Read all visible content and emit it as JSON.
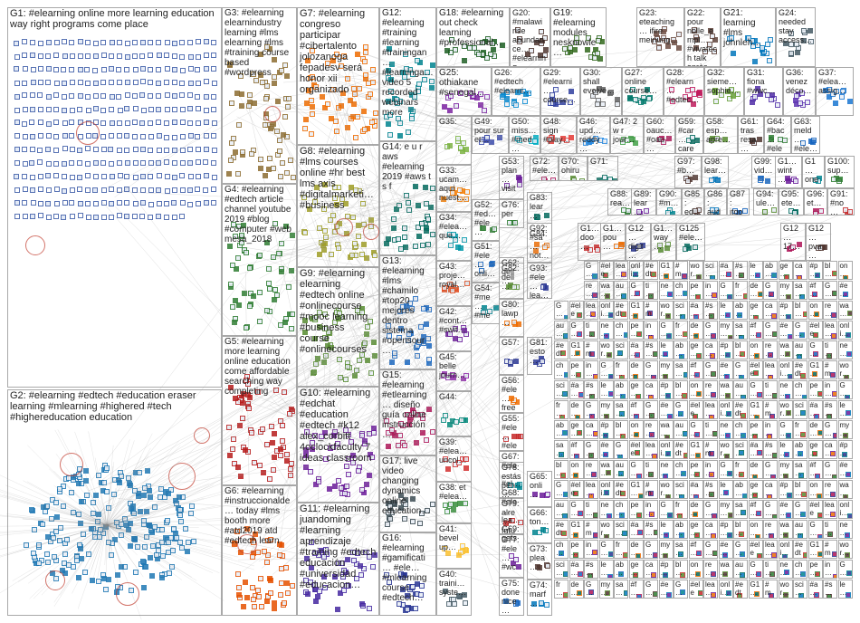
{
  "graph": {
    "groups": [
      {
        "id": "G1",
        "label": "G1: #elearning online more learning education way right programs come place",
        "color": "#1f4e9c"
      },
      {
        "id": "G2",
        "label": "G2: #elearning #edtech #education eraser learning #mlearning #highered #tech #highereducation education",
        "color": "#1f78b4"
      },
      {
        "id": "G3",
        "label": "G3: #elearning elearnindustry learning #lms elearning #lms #training course based #wordpress",
        "color": "#8c6d31"
      },
      {
        "id": "G4",
        "label": "G4: #elearning #edtech article channel youtube 2019 #blog #computer #web mesa_2018",
        "color": "#2e7d32"
      },
      {
        "id": "G5",
        "label": "G5: #elearning more learning online education come affordable searching way completing",
        "color": "#b71c1c"
      },
      {
        "id": "G6",
        "label": "G6: #elearning #instruccionalde… today #lms booth more #atd2019 atd #edtech learn",
        "color": "#e65100"
      },
      {
        "id": "G7",
        "label": "G7: #elearning congreso participar #cibertalento jolozanoga fepadesv será honor xii organizado",
        "color": "#ef6c00"
      },
      {
        "id": "G8",
        "label": "G8: #elearning #lms courses online #hr best lms axis #digitalmarketi… #business",
        "color": "#9e9d24"
      },
      {
        "id": "G9",
        "label": "G9: #elearning elearning #edtech online #onlinecourse #mooc learning #business course #onlinecourses",
        "color": "#558b2f"
      },
      {
        "id": "G10",
        "label": "G10: #elearning #edchat #education #edtech #k12 alex_corbitt 4oclockfaculty 7 ideas classroom",
        "color": "#6a1b9a"
      },
      {
        "id": "G11",
        "label": "G11: #elearning juandoming #learning aprendizaje #training #edtech educación #universidad #educacion…",
        "color": "#4527a0"
      },
      {
        "id": "G12",
        "label": "G12: #elearning #training #learning #trainingan… #learninga… video 5 recorded webinars more",
        "color": "#00838f"
      },
      {
        "id": "G13",
        "label": "G13: #elearning #lms #chamilo #top20 mejores dentro sistema #opensour…",
        "color": "#1565c0"
      },
      {
        "id": "G14",
        "label": "G14: e u r aws #elearning 2019 #aws t s f",
        "color": "#00695c"
      },
      {
        "id": "G15",
        "label": "G15: #elearning #etlearning… diseño guía online instrucción…",
        "color": "#ad1457"
      },
      {
        "id": "G16",
        "label": "G16: #elearning #gamificati… #ele… #mlearning course #edtech…",
        "color": "#283593"
      },
      {
        "id": "G17",
        "label": "G17: live video changing dynamics online education…",
        "color": "#37474f"
      },
      {
        "id": "G18",
        "label": "G18: #elearning out check learning #professional…",
        "color": "#1b5e20"
      },
      {
        "id": "G19",
        "label": "G19: #elearning modules nesknowle…",
        "color": "#33691e"
      },
      {
        "id": "G20",
        "label": "G20: #malawi rise abundance… #elearning…",
        "color": "#4e342e"
      },
      {
        "id": "G21",
        "label": "G21: learning #lms johnleh…",
        "color": "#0277bd"
      },
      {
        "id": "G22",
        "label": "G22: pour nolle_empl… #vivatech talk après…",
        "color": "#5d4037"
      },
      {
        "id": "G23",
        "label": "G23: eteaching… ifire meinung…",
        "color": "#6d4c41"
      },
      {
        "id": "G24",
        "label": "G24: needed stay access…",
        "color": "#455a64"
      },
      {
        "id": "G25",
        "label": "G25: othiakane #senegal…",
        "color": "#7b1fa2"
      },
      {
        "id": "G26",
        "label": "G26: #edtech #elearni…",
        "color": "#0288d1"
      },
      {
        "id": "G27",
        "label": "G27: online course…",
        "color": "#00796b"
      },
      {
        "id": "G28",
        "label": "G28: #elearn… #edtec…",
        "color": "#c2185b"
      },
      {
        "id": "G29",
        "label": "G29: #elearni… course…",
        "color": "#303f9f"
      },
      {
        "id": "G30",
        "label": "G30: shall evolve…",
        "color": "#616161"
      },
      {
        "id": "G31",
        "label": "G31: fiona #wwc…",
        "color": "#512da8"
      },
      {
        "id": "G32",
        "label": "G32: sieme… sophie…",
        "color": "#689f38"
      },
      {
        "id": "G33",
        "label": "G33: ucam… aquí nuest…",
        "color": "#f57c00"
      },
      {
        "id": "G34",
        "label": "G34: #elea… que…",
        "color": "#0097a7"
      },
      {
        "id": "G35",
        "label": "G35:",
        "color": "#7cb342"
      },
      {
        "id": "G36",
        "label": "G36: venez déco…",
        "color": "#5e35b1"
      },
      {
        "id": "G37",
        "label": "G37: #elea… assig…",
        "color": "#1976d2"
      },
      {
        "id": "G38",
        "label": "G38: et #elea…",
        "color": "#388e3c"
      },
      {
        "id": "G39",
        "label": "G39: #elea… uncol…",
        "color": "#d32f2f"
      },
      {
        "id": "G40",
        "label": "G40: traini… syste…",
        "color": "#455a64"
      },
      {
        "id": "G41",
        "label": "G41: bevel up…",
        "color": "#fbc02d"
      },
      {
        "id": "G42",
        "label": "G42: #cont… #swit…",
        "color": "#6a1b9a"
      },
      {
        "id": "G43",
        "label": "G43: proje… royal…",
        "color": "#e64a19"
      },
      {
        "id": "G44",
        "label": "G44:",
        "color": "#00897b"
      },
      {
        "id": "G45",
        "label": "G45: belle journ…",
        "color": "#8e24aa"
      },
      {
        "id": "G46",
        "label": "G46: upd… reddy…",
        "color": "#1e88e5"
      },
      {
        "id": "G47",
        "label": "G47: 2 w r jour…",
        "color": "#43a047"
      },
      {
        "id": "G48",
        "label": "G48: sign #play…",
        "color": "#e53935"
      },
      {
        "id": "G49",
        "label": "G49: pour sur et…",
        "color": "#3949ab"
      },
      {
        "id": "G50",
        "label": "G50: miss… #med…",
        "color": "#00acc1"
      }
    ],
    "small_labels": [
      {
        "id": "G51",
        "text": "G51: #ele… onli…"
      },
      {
        "id": "G52",
        "text": "G52: #ed… #ele…"
      },
      {
        "id": "G53",
        "text": "G53: plan… visit…"
      },
      {
        "id": "G54",
        "text": "G54: #me… #me…"
      },
      {
        "id": "G55",
        "text": "G55: #ele… #ele…"
      },
      {
        "id": "G56",
        "text": "G56: #ele… free…"
      },
      {
        "id": "G57",
        "text": "G57:"
      },
      {
        "id": "G58",
        "text": "G58: esp… apre…"
      },
      {
        "id": "G59",
        "text": "G59: #car… care…"
      },
      {
        "id": "G60",
        "text": "G60: oauc… #oau…"
      },
      {
        "id": "G61",
        "text": "G61: tras resa…"
      },
      {
        "id": "G62",
        "text": "G62: dell…"
      },
      {
        "id": "G63",
        "text": "G63: meld… #ele…"
      },
      {
        "id": "G64",
        "text": "G64: #bac… #ele…"
      },
      {
        "id": "G65",
        "text": "G65: onli…"
      },
      {
        "id": "G66",
        "text": "G66: ton…"
      },
      {
        "id": "G67",
        "text": "G67: #ele… #el…"
      },
      {
        "id": "G68",
        "text": "G68: #ele… lea…"
      },
      {
        "id": "G69",
        "text": "G69: gets…"
      },
      {
        "id": "G70",
        "text": "G70: ohiru…"
      },
      {
        "id": "G71",
        "text": "G71:"
      },
      {
        "id": "G72",
        "text": "G72: #ele…"
      },
      {
        "id": "G73",
        "text": "G73: plea…"
      },
      {
        "id": "G74",
        "text": "G74: marf…"
      },
      {
        "id": "G75",
        "text": "G75: done nice…"
      },
      {
        "id": "G76",
        "text": "G76: per"
      },
      {
        "id": "G77",
        "text": "G77: #ele… #wc…"
      },
      {
        "id": "G78",
        "text": "G78: estás pen…"
      },
      {
        "id": "G79",
        "text": "G79: alre… futu…"
      },
      {
        "id": "G80",
        "text": "G80: lawp…"
      },
      {
        "id": "G81",
        "text": "G81: esto…"
      },
      {
        "id": "G82",
        "text": "G82: dell…"
      },
      {
        "id": "G83",
        "text": "G83: lear…"
      },
      {
        "id": "G84",
        "text": "G84:"
      },
      {
        "id": "G85",
        "text": "G85: ed…"
      },
      {
        "id": "G86",
        "text": "G86: aud…"
      },
      {
        "id": "G87",
        "text": "G87: itgo…"
      },
      {
        "id": "G88",
        "text": "G88: rea…"
      },
      {
        "id": "G89",
        "text": "G89: lear…"
      },
      {
        "id": "G90",
        "text": "G90: #m…"
      },
      {
        "id": "G91",
        "text": "G91: #no…"
      },
      {
        "id": "G92",
        "text": "G92: #sa… not…"
      },
      {
        "id": "G93",
        "text": "G93: #ele… lea…"
      },
      {
        "id": "G94",
        "text": "G94: ule…"
      },
      {
        "id": "G95",
        "text": "G95: ete…"
      },
      {
        "id": "G96",
        "text": "G96: et…"
      },
      {
        "id": "G97",
        "text": "G97: #b…"
      },
      {
        "id": "G98",
        "text": "G98: lear…"
      },
      {
        "id": "G99",
        "text": "G99: vid…"
      },
      {
        "id": "G100",
        "text": "G100: sup…"
      },
      {
        "id": "G101",
        "text": "G1… wint…"
      },
      {
        "id": "G105",
        "text": "G1… one…"
      },
      {
        "id": "G110",
        "text": "G1… doo…"
      },
      {
        "id": "G111",
        "text": "G1… pou…"
      },
      {
        "id": "G112",
        "text": "G12… digit…"
      },
      {
        "id": "G113",
        "text": "G1… way…"
      },
      {
        "id": "G125",
        "text": "G125 #ele…"
      },
      {
        "id": "G126",
        "text": "G12… 17…"
      },
      {
        "id": "G127",
        "text": "G12… pva…"
      }
    ],
    "micro_labels": [
      "G…",
      "#ele…",
      "lea…",
      "onli…",
      "#edt…",
      "G1…",
      "#m…",
      "wor…",
      "sci…",
      "#a…",
      "#s…",
      "le…",
      "ab…",
      "ge…",
      "ca…",
      "#p…",
      "bl…",
      "on…",
      "re…",
      "wa…",
      "au…",
      "G…",
      "ti…",
      "ne…",
      "ch…",
      "pe…",
      "in…",
      "G…",
      "fr…",
      "de…",
      "G…",
      "my…",
      "sa…",
      "#f…",
      "G…",
      "#e…"
    ]
  }
}
